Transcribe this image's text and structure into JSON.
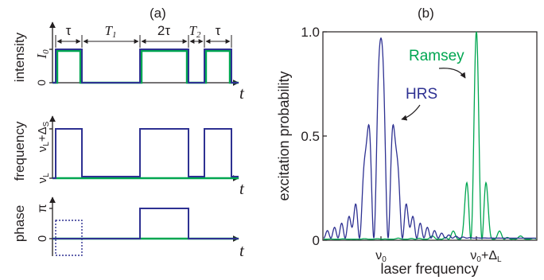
{
  "panel_a": {
    "label": "(a)",
    "t_symbol": "t",
    "segments": [
      "τ",
      "T₁",
      "2τ",
      "T₂",
      "τ"
    ],
    "intensity": {
      "ylabel": "intensity",
      "ytick_top": "I₀",
      "ytick_bottom": "0"
    },
    "frequency": {
      "ylabel": "frequency",
      "ytick_top": "νL+ΔS",
      "ytick_bottom": "νL"
    },
    "phase": {
      "ylabel": "phase",
      "ytick_top": "π",
      "ytick_bottom": "0"
    }
  },
  "panel_b": {
    "label": "(b)",
    "ylabel": "excitation probability",
    "xlabel": "laser frequency",
    "yticks": [
      "0",
      "0.5",
      "1.0"
    ],
    "xticks": [
      "ν₀",
      "ν₀+ΔL"
    ],
    "annotation_hrs": "HRS",
    "annotation_ramsey": "Ramsey"
  },
  "chart_data": [
    {
      "type": "line",
      "panel": "a-intensity",
      "x_segments": [
        "τ",
        "T₁",
        "2τ",
        "T₂",
        "τ"
      ],
      "series": [
        {
          "name": "HRS",
          "color": "#2e3192",
          "levels": [
            1,
            0,
            1,
            0,
            1
          ]
        },
        {
          "name": "Ramsey",
          "color": "#00a651",
          "levels": [
            1,
            0,
            1,
            0,
            1
          ]
        }
      ]
    },
    {
      "type": "line",
      "panel": "a-frequency",
      "x_segments": [
        "τ",
        "T₁",
        "2τ",
        "T₂",
        "τ"
      ],
      "series": [
        {
          "name": "HRS",
          "color": "#2e3192",
          "levels": [
            1,
            0,
            1,
            0,
            1
          ]
        },
        {
          "name": "Ramsey",
          "color": "#00a651",
          "levels": [
            0,
            0,
            0,
            0,
            0
          ]
        }
      ]
    },
    {
      "type": "line",
      "panel": "a-phase",
      "x_segments": [
        "τ",
        "T₁",
        "2τ",
        "T₂",
        "τ"
      ],
      "series": [
        {
          "name": "HRS",
          "color": "#2e3192",
          "levels": [
            0,
            0,
            1,
            0,
            0
          ]
        },
        {
          "name": "Ramsey",
          "color": "#00a651",
          "levels": [
            0,
            0,
            0,
            0,
            0
          ]
        }
      ]
    },
    {
      "type": "line",
      "panel": "b",
      "xlabel": "laser frequency",
      "ylabel": "excitation probability",
      "ylim": [
        0,
        1.0
      ],
      "x_markers": [
        "ν₀",
        "ν₀+ΔL"
      ],
      "series": [
        {
          "name": "HRS",
          "color": "#2e3192",
          "center": 0,
          "peak": 0.96
        },
        {
          "name": "Ramsey",
          "color": "#00a651",
          "center": 1,
          "peak": 1.0
        }
      ]
    }
  ]
}
